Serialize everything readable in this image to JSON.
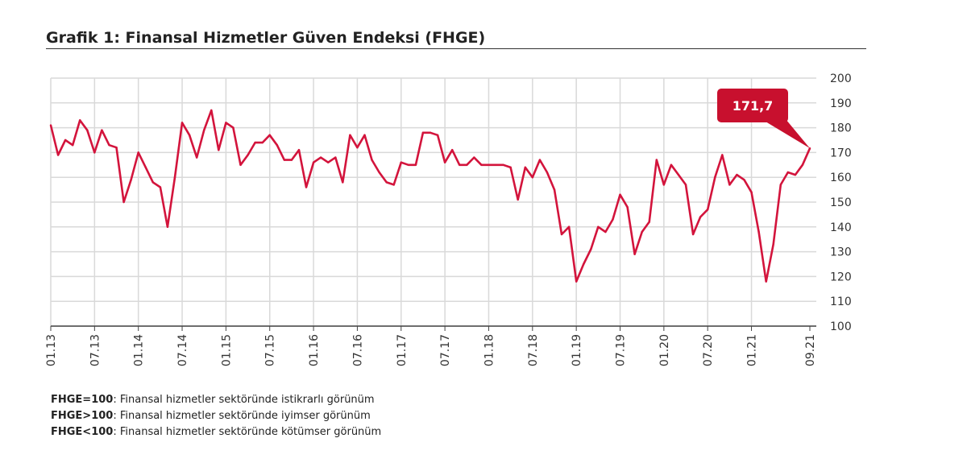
{
  "title": "Grafik 1: Finansal Hizmetler Güven Endeksi (FHGE)",
  "colors": {
    "line": "#d3143c",
    "callout": "#c8102e",
    "grid": "#d9d9d9",
    "axis": "#444444"
  },
  "chart_data": {
    "type": "line",
    "title": "Grafik 1: Finansal Hizmetler Güven Endeksi (FHGE)",
    "xlabel": "",
    "ylabel": "",
    "ylim": [
      100,
      200
    ],
    "yticks": [
      100,
      110,
      120,
      130,
      140,
      150,
      160,
      170,
      180,
      190,
      200
    ],
    "xtick_labels": [
      "01.13",
      "07.13",
      "01.14",
      "07.14",
      "01.15",
      "07.15",
      "01.16",
      "07.16",
      "01.17",
      "07.17",
      "01.18",
      "07.18",
      "01.19",
      "07.19",
      "01.20",
      "07.20",
      "01.21",
      "09.21"
    ],
    "x_start": "01.13",
    "x_end": "09.21",
    "frequency": "monthly",
    "grid": true,
    "y_axis_side": "right",
    "callout": {
      "label": "171,7",
      "period": "09.21"
    },
    "values": [
      181,
      169,
      175,
      173,
      183,
      179,
      170,
      179,
      173,
      172,
      150,
      159,
      170,
      164,
      158,
      156,
      140,
      160,
      182,
      177,
      168,
      179,
      187,
      171,
      182,
      180,
      165,
      169,
      174,
      174,
      177,
      173,
      167,
      167,
      171,
      156,
      166,
      168,
      166,
      168,
      158,
      177,
      172,
      177,
      167,
      162,
      158,
      157,
      166,
      165,
      165,
      178,
      178,
      177,
      166,
      171,
      165,
      165,
      168,
      165,
      165,
      165,
      165,
      164,
      151,
      164,
      160,
      167,
      162,
      155,
      137,
      140,
      118,
      125,
      131,
      140,
      138,
      143,
      153,
      148,
      129,
      138,
      142,
      167,
      157,
      165,
      161,
      157,
      137,
      144,
      147,
      160,
      169,
      157,
      161,
      159,
      154,
      138,
      118,
      133,
      157,
      162,
      161,
      165,
      171.7
    ]
  },
  "notes": [
    {
      "key": "FHGE=100",
      "text": ": Finansal hizmetler sektöründe istikrarlı görünüm"
    },
    {
      "key": "FHGE>100",
      "text": ": Finansal hizmetler sektöründe iyimser görünüm"
    },
    {
      "key": "FHGE<100",
      "text": ": Finansal hizmetler sektöründe kötümser görünüm"
    }
  ]
}
